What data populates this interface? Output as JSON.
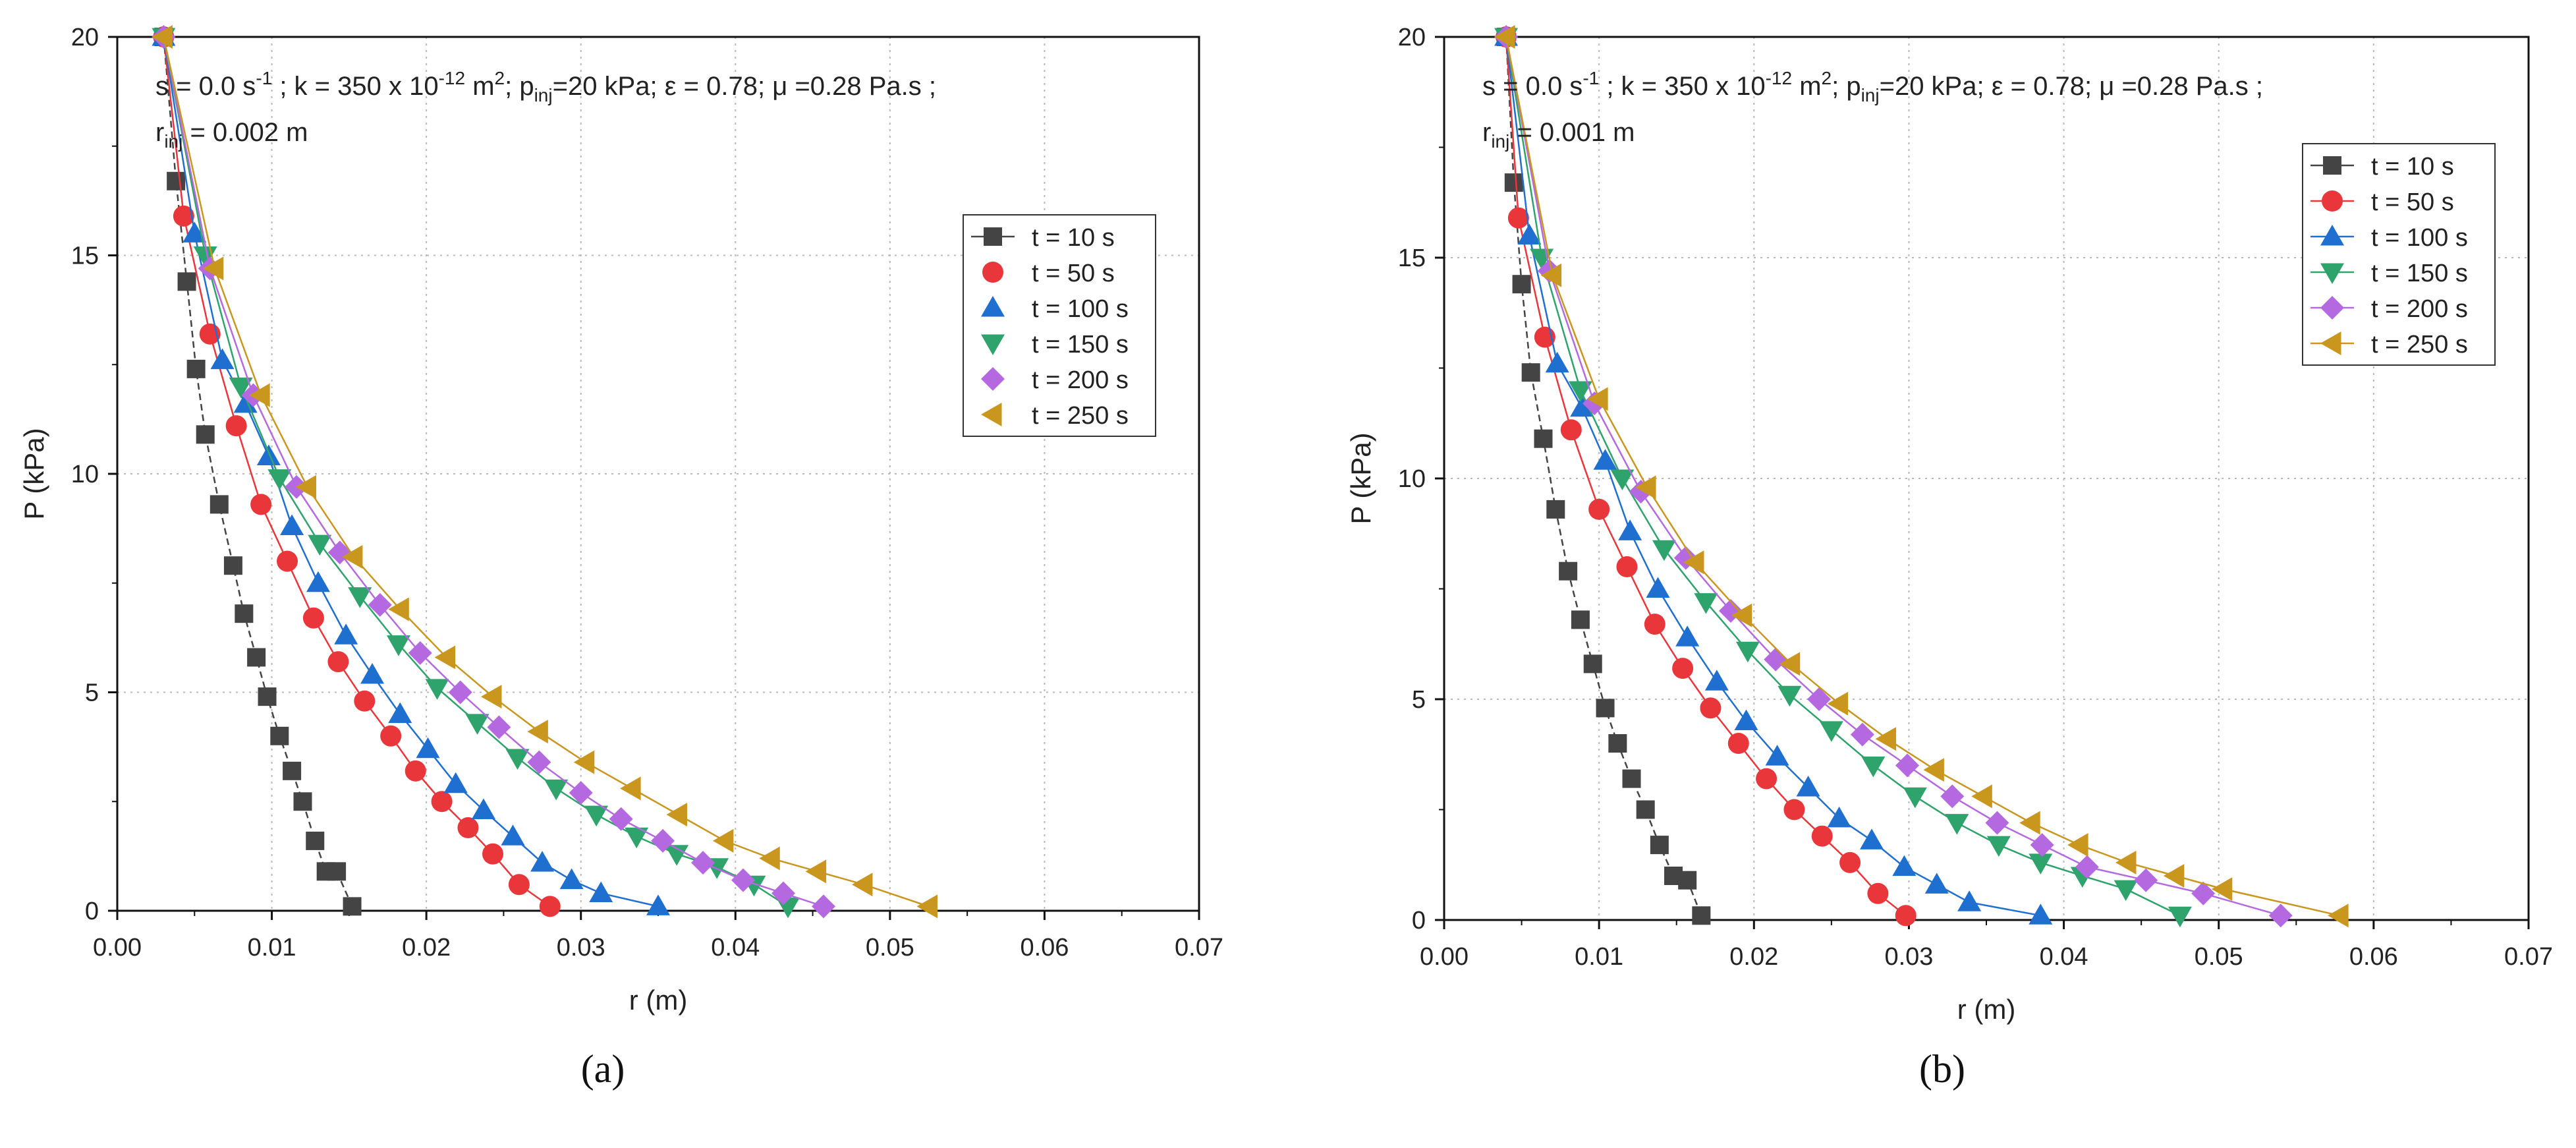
{
  "chart_data": [
    {
      "type": "line",
      "panel_label": "(a)",
      "title": "",
      "xlabel": "r (m)",
      "ylabel": "P (kPa)",
      "xlim": [
        0,
        0.07
      ],
      "ylim": [
        0,
        20
      ],
      "xticks": [
        "0.00",
        "0.01",
        "0.02",
        "0.03",
        "0.04",
        "0.05",
        "0.06",
        "0.07"
      ],
      "yticks": [
        "0",
        "5",
        "10",
        "15",
        "20"
      ],
      "grid": true,
      "legend_position": "top-right",
      "annotation": {
        "s_pre": "s = 0.0 s",
        "s_sup": "-1",
        "k_pre": " ; k = 350 x 10",
        "k_sup": "-12",
        "k_unit": " m",
        "k_unit_sup": "2",
        "p_pre": "; p",
        "p_sub": "inj",
        "p_post": "=20 kPa; ε = 0.78; μ =0.28 Pa.s ;",
        "r_pre": "r",
        "r_sub": "inj",
        "r_post": " = 0.002 m"
      },
      "series": [
        {
          "name": "t = 10 s",
          "marker": "square",
          "color": "#444444",
          "x": [
            0.003,
            0.0038,
            0.0045,
            0.0051,
            0.0057,
            0.0066,
            0.0075,
            0.0082,
            0.009,
            0.0097,
            0.0105,
            0.0113,
            0.012,
            0.0128,
            0.0135,
            0.0142,
            0.0152
          ],
          "y": [
            20.0,
            16.7,
            14.4,
            12.4,
            10.9,
            9.3,
            7.9,
            6.8,
            5.8,
            4.9,
            4.0,
            3.2,
            2.5,
            1.6,
            0.9,
            0.9,
            0.1
          ]
        },
        {
          "name": "t = 50 s",
          "marker": "circle",
          "color": "#e8363b",
          "x": [
            0.003,
            0.0043,
            0.006,
            0.0077,
            0.0093,
            0.011,
            0.0127,
            0.0143,
            0.016,
            0.0177,
            0.0193,
            0.021,
            0.0227,
            0.0243,
            0.026,
            0.028
          ],
          "y": [
            20.0,
            15.9,
            13.2,
            11.1,
            9.3,
            8.0,
            6.7,
            5.7,
            4.8,
            4.0,
            3.2,
            2.5,
            1.9,
            1.3,
            0.6,
            0.1
          ]
        },
        {
          "name": "t = 100 s",
          "marker": "triangle-up",
          "color": "#1f6fd1",
          "x": [
            0.003,
            0.005,
            0.0068,
            0.0083,
            0.0098,
            0.0113,
            0.013,
            0.0148,
            0.0165,
            0.0183,
            0.0201,
            0.0219,
            0.0237,
            0.0256,
            0.0275,
            0.0294,
            0.0313,
            0.035
          ],
          "y": [
            20.0,
            15.5,
            12.6,
            11.6,
            10.4,
            8.8,
            7.5,
            6.3,
            5.4,
            4.5,
            3.7,
            2.9,
            2.3,
            1.7,
            1.1,
            0.7,
            0.4,
            0.1
          ]
        },
        {
          "name": "t = 150 s",
          "marker": "triangle-down",
          "color": "#2ea36b",
          "x": [
            0.003,
            0.0057,
            0.008,
            0.0105,
            0.0131,
            0.0157,
            0.0182,
            0.0207,
            0.0233,
            0.0259,
            0.0284,
            0.031,
            0.0336,
            0.0362,
            0.0388,
            0.0412,
            0.0434
          ],
          "y": [
            20.0,
            15.0,
            12.0,
            9.9,
            8.4,
            7.2,
            6.1,
            5.1,
            4.3,
            3.5,
            2.8,
            2.2,
            1.7,
            1.3,
            1.0,
            0.6,
            0.1
          ]
        },
        {
          "name": "t = 200 s",
          "marker": "diamond",
          "color": "#b569e0",
          "x": [
            0.003,
            0.006,
            0.0088,
            0.0116,
            0.0144,
            0.017,
            0.0196,
            0.0222,
            0.0247,
            0.0273,
            0.03,
            0.0326,
            0.0353,
            0.0379,
            0.0405,
            0.0431,
            0.0457
          ],
          "y": [
            20.0,
            14.7,
            11.8,
            9.7,
            8.2,
            7.0,
            5.9,
            5.0,
            4.2,
            3.4,
            2.7,
            2.1,
            1.6,
            1.1,
            0.7,
            0.4,
            0.1
          ]
        },
        {
          "name": "t = 250 s",
          "marker": "triangle-left",
          "color": "#c9961e",
          "x": [
            0.003,
            0.0063,
            0.0093,
            0.0123,
            0.0153,
            0.0183,
            0.0213,
            0.0243,
            0.0273,
            0.0303,
            0.0333,
            0.0363,
            0.0393,
            0.0423,
            0.0453,
            0.0483,
            0.0525
          ],
          "y": [
            20.0,
            14.7,
            11.8,
            9.7,
            8.1,
            6.9,
            5.8,
            4.9,
            4.1,
            3.4,
            2.8,
            2.2,
            1.6,
            1.2,
            0.9,
            0.6,
            0.1
          ]
        }
      ]
    },
    {
      "type": "line",
      "panel_label": "(b)",
      "title": "",
      "xlabel": "r (m)",
      "ylabel": "P (kPa)",
      "xlim": [
        0,
        0.07
      ],
      "ylim": [
        0,
        20
      ],
      "xticks": [
        "0.00",
        "0.01",
        "0.02",
        "0.03",
        "0.04",
        "0.05",
        "0.06",
        "0.07"
      ],
      "yticks": [
        "0",
        "5",
        "10",
        "15",
        "20"
      ],
      "grid": true,
      "legend_position": "top-right",
      "annotation": {
        "s_pre": "s = 0.0 s",
        "s_sup": "-1",
        "k_pre": " ; k = 350 x 10",
        "k_sup": "-12",
        "k_unit": " m",
        "k_unit_sup": "2",
        "p_pre": "; p",
        "p_sub": "inj",
        "p_post": "=20 kPa; ε = 0.78; μ =0.28 Pa.s ;",
        "r_pre": "r",
        "r_sub": "inj",
        "r_post": " = 0.001 m"
      },
      "series": [
        {
          "name": "t = 10 s",
          "marker": "square",
          "color": "#444444",
          "x": [
            0.004,
            0.0045,
            0.005,
            0.0056,
            0.0064,
            0.0072,
            0.008,
            0.0088,
            0.0096,
            0.0104,
            0.0112,
            0.0121,
            0.013,
            0.0139,
            0.0148,
            0.0157,
            0.0166
          ],
          "y": [
            20.0,
            16.7,
            14.4,
            12.4,
            10.9,
            9.3,
            7.9,
            6.8,
            5.8,
            4.8,
            4.0,
            3.2,
            2.5,
            1.7,
            1.0,
            0.9,
            0.1
          ]
        },
        {
          "name": "t = 50 s",
          "marker": "circle",
          "color": "#e8363b",
          "x": [
            0.004,
            0.0048,
            0.0065,
            0.0082,
            0.01,
            0.0118,
            0.0136,
            0.0154,
            0.0172,
            0.019,
            0.0208,
            0.0226,
            0.0244,
            0.0262,
            0.028,
            0.0298
          ],
          "y": [
            20.0,
            15.9,
            13.2,
            11.1,
            9.3,
            8.0,
            6.7,
            5.7,
            4.8,
            4.0,
            3.2,
            2.5,
            1.9,
            1.3,
            0.6,
            0.1
          ]
        },
        {
          "name": "t = 100 s",
          "marker": "triangle-up",
          "color": "#1f6fd1",
          "x": [
            0.004,
            0.0055,
            0.0073,
            0.0089,
            0.0104,
            0.012,
            0.0138,
            0.0157,
            0.0176,
            0.0195,
            0.0215,
            0.0235,
            0.0255,
            0.0276,
            0.0297,
            0.0318,
            0.0339,
            0.0385
          ],
          "y": [
            20.0,
            15.5,
            12.6,
            11.6,
            10.4,
            8.8,
            7.5,
            6.4,
            5.4,
            4.5,
            3.7,
            3.0,
            2.3,
            1.8,
            1.2,
            0.8,
            0.4,
            0.1
          ]
        },
        {
          "name": "t = 150 s",
          "marker": "triangle-down",
          "color": "#2ea36b",
          "x": [
            0.004,
            0.0063,
            0.0088,
            0.0115,
            0.0142,
            0.0169,
            0.0196,
            0.0223,
            0.025,
            0.0277,
            0.0304,
            0.0331,
            0.0358,
            0.0385,
            0.0412,
            0.044,
            0.0475
          ],
          "y": [
            20.0,
            15.0,
            12.0,
            10.0,
            8.4,
            7.2,
            6.1,
            5.1,
            4.3,
            3.5,
            2.8,
            2.2,
            1.7,
            1.3,
            1.0,
            0.7,
            0.1
          ]
        },
        {
          "name": "t = 200 s",
          "marker": "diamond",
          "color": "#b569e0",
          "x": [
            0.004,
            0.0068,
            0.0097,
            0.0127,
            0.0156,
            0.0185,
            0.0214,
            0.0242,
            0.027,
            0.0299,
            0.0328,
            0.0357,
            0.0386,
            0.0415,
            0.0453,
            0.049,
            0.054
          ],
          "y": [
            20.0,
            14.7,
            11.7,
            9.7,
            8.2,
            7.0,
            5.9,
            5.0,
            4.2,
            3.5,
            2.8,
            2.2,
            1.7,
            1.2,
            0.9,
            0.6,
            0.1
          ]
        },
        {
          "name": "t = 250 s",
          "marker": "triangle-left",
          "color": "#c9961e",
          "x": [
            0.004,
            0.007,
            0.01,
            0.0131,
            0.0162,
            0.0193,
            0.0224,
            0.0255,
            0.0286,
            0.0317,
            0.0348,
            0.0379,
            0.041,
            0.0441,
            0.0472,
            0.0503,
            0.0578
          ],
          "y": [
            20.0,
            14.6,
            11.8,
            9.8,
            8.1,
            6.9,
            5.8,
            4.9,
            4.1,
            3.4,
            2.8,
            2.2,
            1.7,
            1.3,
            1.0,
            0.7,
            0.1
          ]
        }
      ]
    }
  ]
}
